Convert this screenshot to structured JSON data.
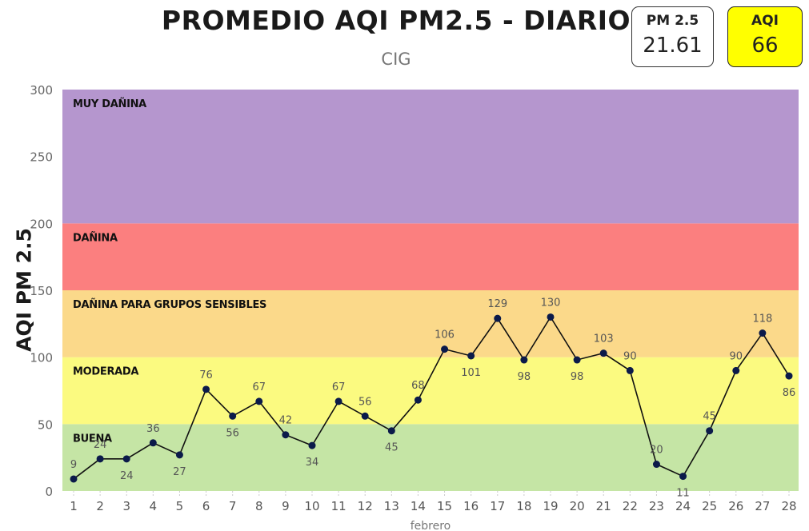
{
  "header": {
    "title": "PROMEDIO AQI PM2.5 - DIARIO",
    "subtitle": "CIG"
  },
  "cards": {
    "pm": {
      "label": "PM 2.5",
      "value": "21.61",
      "bg": "#ffffff"
    },
    "aqi": {
      "label": "AQI",
      "value": "66",
      "bg": "#ffff00"
    }
  },
  "chart_data": {
    "type": "line",
    "title": "PROMEDIO AQI PM2.5 - DIARIO",
    "subtitle": "CIG",
    "xlabel": "febrero",
    "ylabel": "AQI PM 2.5",
    "ylim": [
      0,
      300
    ],
    "yticks": [
      0,
      50,
      100,
      150,
      200,
      250,
      300
    ],
    "grid": false,
    "categories": [
      1,
      2,
      3,
      4,
      5,
      6,
      7,
      8,
      9,
      10,
      11,
      12,
      13,
      14,
      15,
      16,
      17,
      18,
      19,
      20,
      21,
      22,
      23,
      24,
      25,
      26,
      27,
      28
    ],
    "series": [
      {
        "values": [
          9,
          24,
          24,
          36,
          27,
          76,
          56,
          67,
          42,
          34,
          67,
          56,
          45,
          68,
          106,
          101,
          129,
          98,
          130,
          98,
          103,
          90,
          20,
          11,
          45,
          90,
          118,
          86
        ],
        "color": "#0b1a4a"
      }
    ],
    "bands": [
      {
        "label": "BUENA",
        "from": 0,
        "to": 50,
        "color": "#c5e5a5"
      },
      {
        "label": "MODERADA",
        "from": 50,
        "to": 100,
        "color": "#fbfa80"
      },
      {
        "label": "DAÑINA PARA GRUPOS SENSIBLES",
        "from": 100,
        "to": 150,
        "color": "#fbd98a"
      },
      {
        "label": "DAÑINA",
        "from": 150,
        "to": 200,
        "color": "#fb7f7f"
      },
      {
        "label": "MUY DAÑINA",
        "from": 200,
        "to": 300,
        "color": "#b596ce"
      }
    ]
  }
}
